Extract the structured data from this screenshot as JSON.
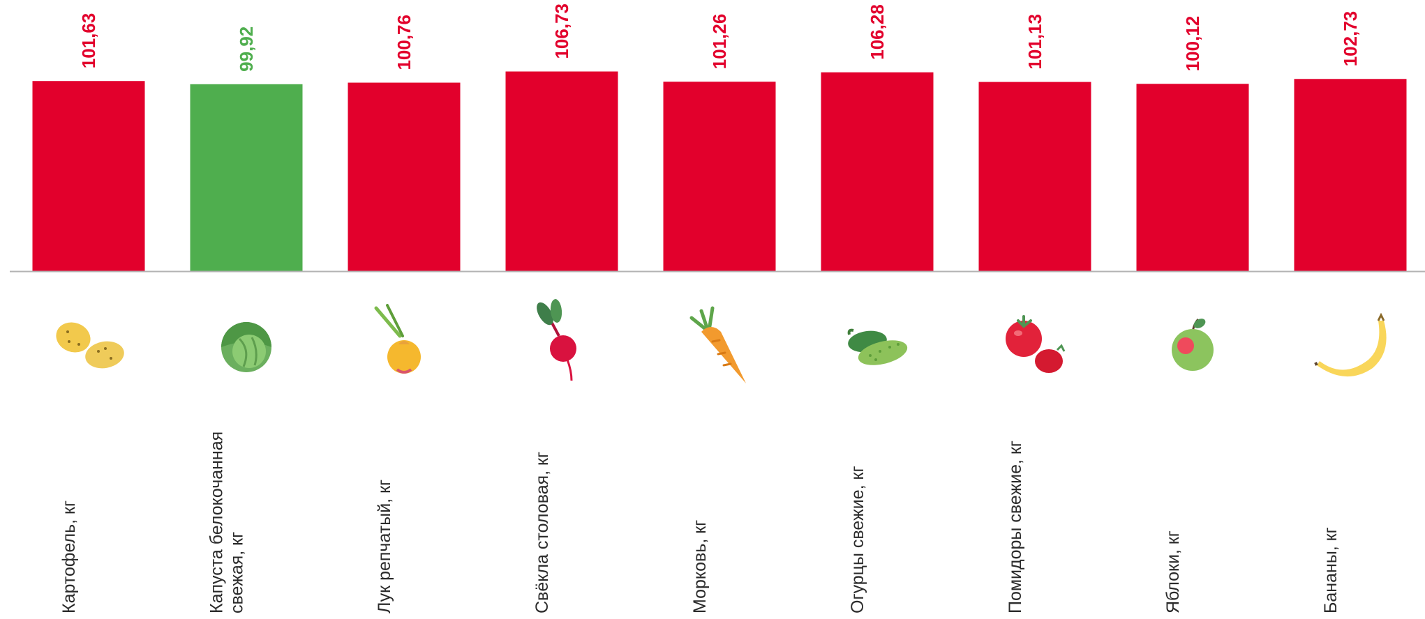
{
  "colors": {
    "up": "#E2002C",
    "down": "#4FAE4E",
    "axis": "#b3b3b3"
  },
  "chart_data": {
    "type": "bar",
    "categories": [
      [
        "Картофель, кг"
      ],
      [
        "Капуста белокочанная",
        "свежая, кг"
      ],
      [
        "Лук репчатый, кг"
      ],
      [
        "Свёкла столовая, кг"
      ],
      [
        "Морковь, кг"
      ],
      [
        "Огурцы свежие, кг"
      ],
      [
        "Помидоры свежие, кг"
      ],
      [
        "Яблоки, кг"
      ],
      [
        "Бананы, кг"
      ]
    ],
    "values": [
      101.63,
      99.92,
      100.76,
      106.73,
      101.26,
      106.28,
      101.13,
      100.12,
      102.73
    ],
    "value_labels": [
      "101,63",
      "99,92",
      "100,76",
      "106,73",
      "101,26",
      "106,28",
      "101,13",
      "100,12",
      "102,73"
    ],
    "value_status": [
      "up",
      "down",
      "up",
      "up",
      "up",
      "up",
      "up",
      "up",
      "up"
    ],
    "icons": [
      "potato-icon",
      "cabbage-icon",
      "onion-icon",
      "beet-icon",
      "carrot-icon",
      "cucumber-icon",
      "tomato-icon",
      "apple-icon",
      "banana-icon"
    ],
    "ylim": [
      0,
      114
    ],
    "grid": false,
    "legend": "none"
  }
}
